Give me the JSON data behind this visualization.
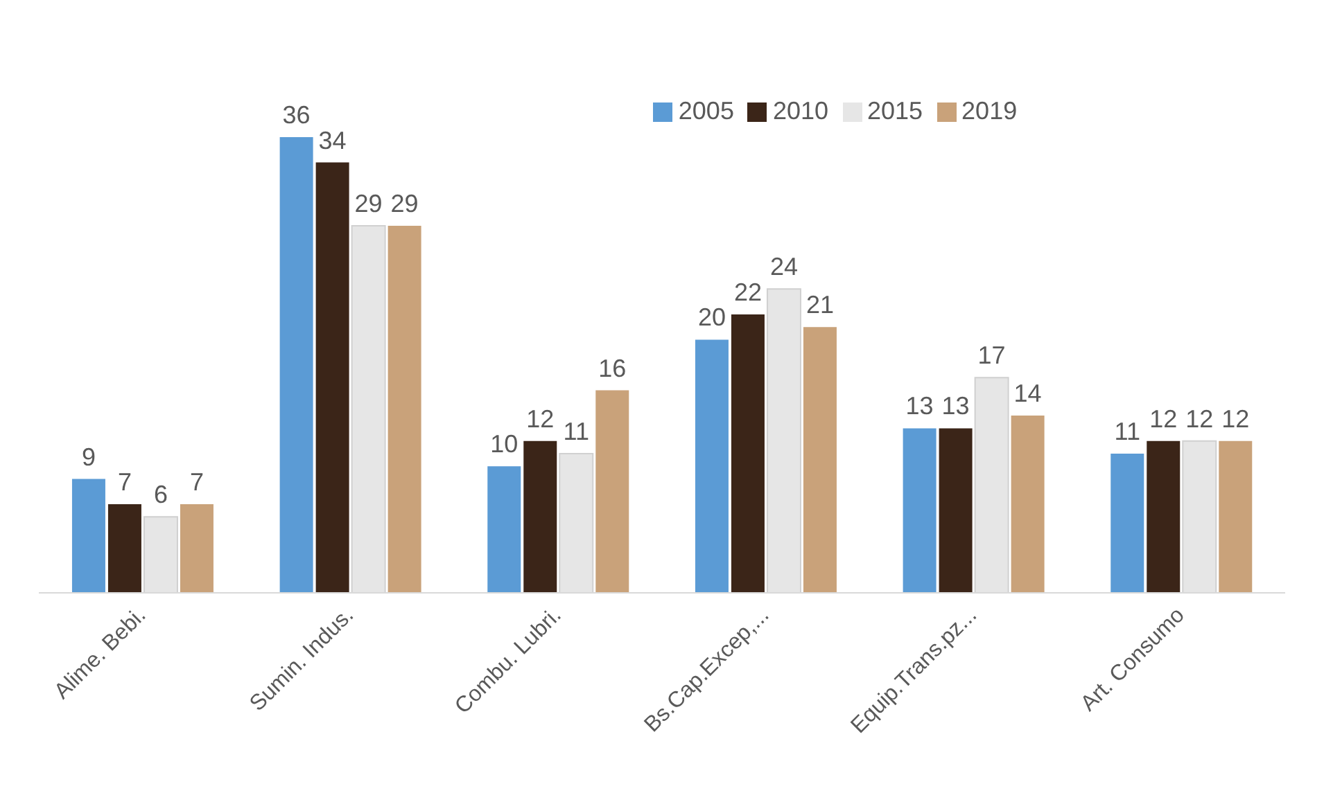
{
  "chart_data": {
    "type": "bar",
    "categories": [
      "Alime. Bebi.",
      "Sumin. Indus.",
      "Combu. Lubri.",
      "Bs.Cap.Excep,...",
      "Equip.Trans.pz...",
      "Art. Consumo"
    ],
    "series": [
      {
        "name": "2005",
        "color": "#5b9bd5",
        "values": [
          9,
          36,
          10,
          20,
          13,
          11
        ]
      },
      {
        "name": "2010",
        "color": "#3b2518",
        "values": [
          7,
          34,
          12,
          22,
          13,
          12
        ]
      },
      {
        "name": "2015",
        "color": "#e6e6e6",
        "values": [
          6,
          29,
          11,
          24,
          17,
          12
        ]
      },
      {
        "name": "2019",
        "color": "#c9a27a",
        "values": [
          7,
          29,
          16,
          21,
          14,
          12
        ]
      }
    ],
    "data_labels": true,
    "legend": "top",
    "grid": false
  }
}
